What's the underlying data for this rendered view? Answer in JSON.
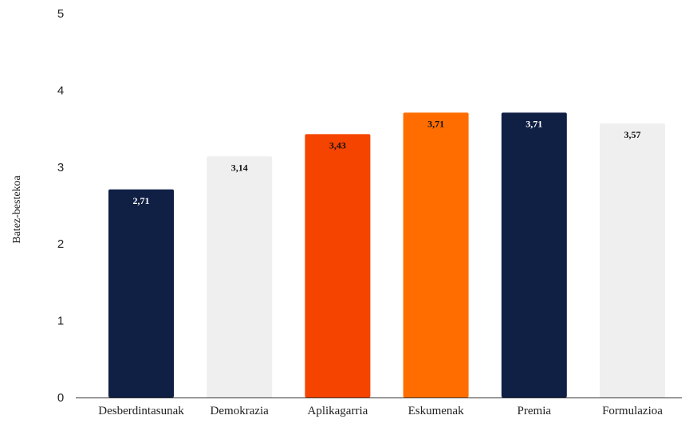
{
  "chart_data": {
    "type": "bar",
    "title": "",
    "xlabel": "",
    "ylabel": "Batez-bestekoa",
    "ylim": [
      0,
      5
    ],
    "yticks": [
      "0",
      "1",
      "2",
      "3",
      "4",
      "5"
    ],
    "grid": false,
    "categories": [
      "Desberdintasunak",
      "Demokrazia",
      "Aplikagarria",
      "Eskumenak",
      "Premia",
      "Formulazioa"
    ],
    "values": [
      2.71,
      3.14,
      3.43,
      3.71,
      3.71,
      3.57
    ],
    "value_labels": [
      "2,71",
      "3,14",
      "3,43",
      "3,71",
      "3,71",
      "3,57"
    ],
    "bar_colors": [
      "#101f44",
      "#efefef",
      "#f54300",
      "#ff6d00",
      "#101f44",
      "#efefef"
    ],
    "label_colors": [
      "#ffffff",
      "#111111",
      "#111111",
      "#111111",
      "#ffffff",
      "#111111"
    ]
  }
}
